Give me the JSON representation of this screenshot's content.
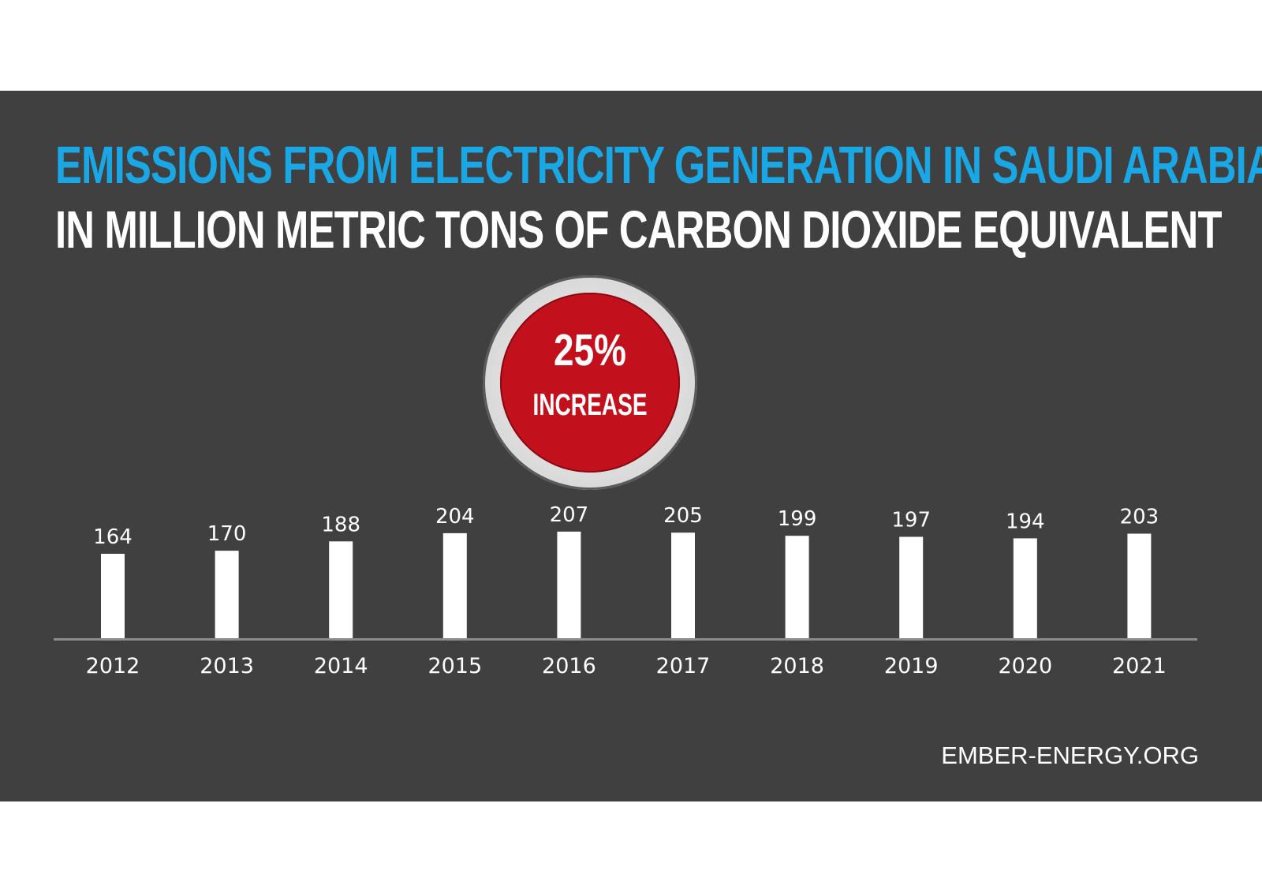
{
  "colors": {
    "panel_background": "#404040",
    "title": "#1aa7e6",
    "subtitle": "#ffffff",
    "bars": "#ffffff",
    "badge": "#c2111d",
    "axis_line": "#8c8c8c"
  },
  "title": "EMISSIONS FROM ELECTRICITY GENERATION IN SAUDI ARABIA",
  "subtitle": "IN MILLION METRIC TONS OF CARBON DIOXIDE EQUIVALENT",
  "badge": {
    "value": "25%",
    "label": "INCREASE"
  },
  "footer": "EMBER-ENERGY.ORG",
  "chart_data": {
    "type": "bar",
    "title": "EMISSIONS FROM ELECTRICITY GENERATION IN SAUDI ARABIA",
    "subtitle": "IN MILLION METRIC TONS OF CARBON DIOXIDE EQUIVALENT",
    "xlabel": "",
    "ylabel": "",
    "categories": [
      "2012",
      "2013",
      "2014",
      "2015",
      "2016",
      "2017",
      "2018",
      "2019",
      "2020",
      "2021"
    ],
    "values": [
      164,
      170,
      188,
      204,
      207,
      205,
      199,
      197,
      194,
      203
    ],
    "data_labels": true,
    "grid": false,
    "legend": "none"
  }
}
